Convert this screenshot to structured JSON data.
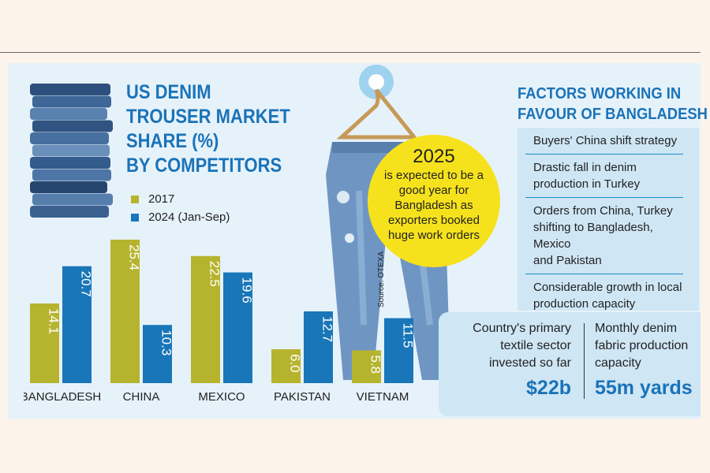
{
  "title_lines": [
    "US DENIM",
    "TROUSER MARKET",
    "SHARE (%)",
    "BY COMPETITORS"
  ],
  "legend": [
    "2017",
    "2024 (Jan-Sep)"
  ],
  "colors": {
    "series_2017": "#b6b42e",
    "series_2024": "#1976b8",
    "accent": "#1a73b8",
    "callout": "#f6e21c"
  },
  "callout": {
    "year": "2025",
    "lines": [
      "is expected to be a",
      "good year for",
      "Bangladesh as",
      "exporters booked",
      "huge work orders"
    ]
  },
  "source": "Source: OTEXA",
  "factors": {
    "title_lines": [
      "FACTORS WORKING IN",
      "FAVOUR OF BANGLADESH"
    ],
    "items": [
      [
        "Buyers' China shift strategy"
      ],
      [
        "Drastic fall in denim",
        "production in Turkey"
      ],
      [
        "Orders from China, Turkey",
        "shifting to Bangladesh, Mexico",
        "and Pakistan"
      ],
      [
        "Considerable growth in local",
        "production capacity"
      ]
    ]
  },
  "stats": {
    "left_lines": [
      "Country's primary",
      "textile sector",
      "invested so far"
    ],
    "left_value": "$22b",
    "right_lines": [
      "Monthly denim",
      "fabric production",
      "capacity"
    ],
    "right_value": "55m yards"
  },
  "chart_data": {
    "type": "bar",
    "categories": [
      "BANGLADESH",
      "CHINA",
      "MEXICO",
      "PAKISTAN",
      "VIETNAM"
    ],
    "series": [
      {
        "name": "2017",
        "values": [
          14.1,
          25.4,
          22.5,
          6.0,
          5.8
        ],
        "labels": [
          "14.1",
          "25.4",
          "22.5",
          "6.0",
          "5.8"
        ]
      },
      {
        "name": "2024 (Jan-Sep)",
        "values": [
          20.7,
          10.3,
          19.6,
          12.7,
          11.5
        ],
        "labels": [
          "20.7",
          "10.3",
          "19.6",
          "12.7",
          "11.5"
        ]
      }
    ],
    "ylim": [
      0,
      25.4
    ],
    "grid": false,
    "legend": "top-left",
    "title": "US DENIM TROUSER MARKET SHARE (%) BY COMPETITORS"
  }
}
